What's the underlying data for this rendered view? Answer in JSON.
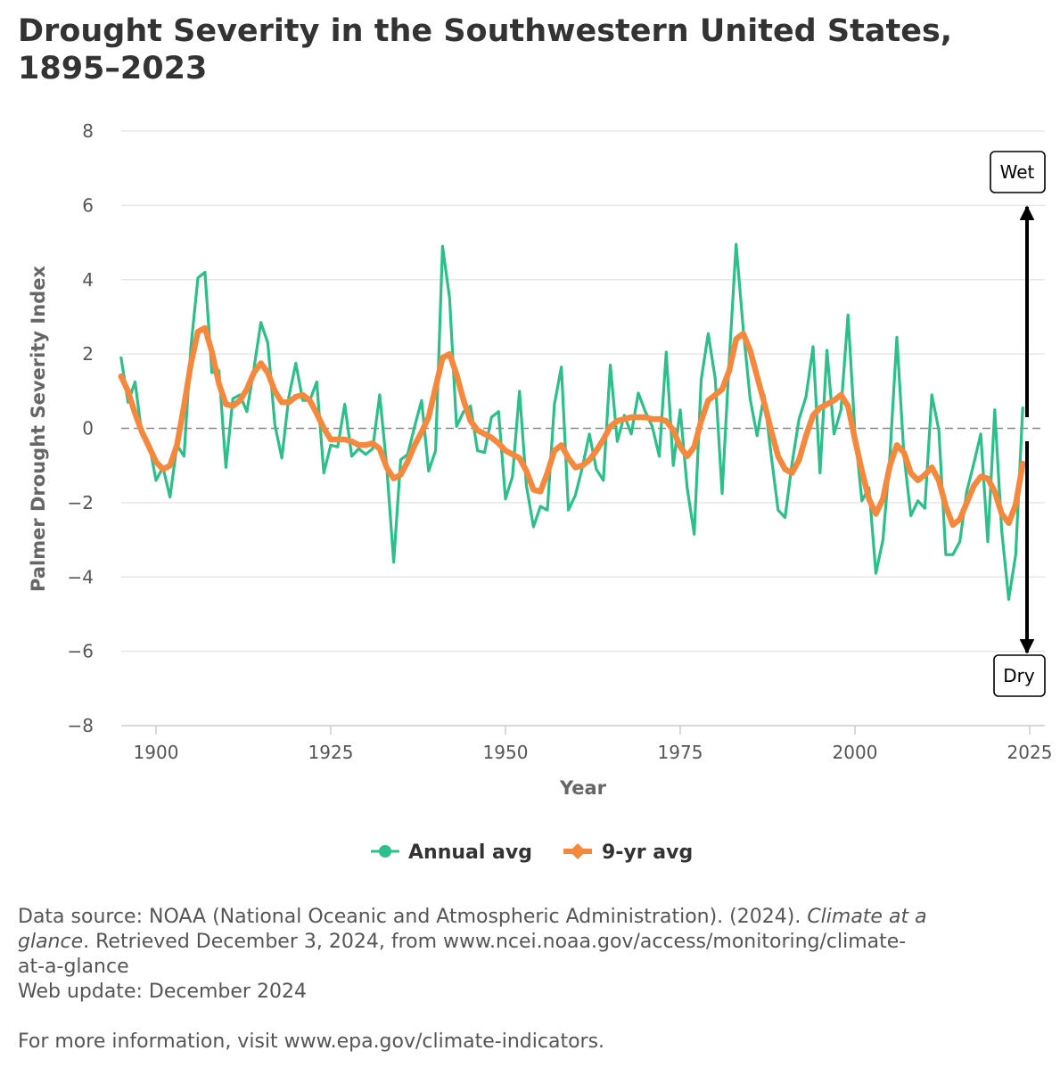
{
  "chart_data": {
    "type": "line",
    "title": "Drought Severity in the Southwestern United States, 1895–2023",
    "xlabel": "Year",
    "ylabel": "Palmer Drought Severity Index",
    "xlim": [
      1895,
      2026
    ],
    "ylim": [
      -8,
      8
    ],
    "xticks": [
      1900,
      1925,
      1950,
      1975,
      2000,
      2025
    ],
    "yticks": [
      8,
      6,
      4,
      2,
      0,
      -2,
      -4,
      -6,
      -8
    ],
    "ytick_labels": [
      "8",
      "6",
      "4",
      "2",
      "0",
      "−2",
      "−4",
      "−6",
      "−8"
    ],
    "grid": true,
    "reference_line": 0,
    "legend_position": "bottom-center",
    "annotations": [
      {
        "text": "Wet",
        "direction": "up"
      },
      {
        "text": "Dry",
        "direction": "down"
      }
    ],
    "series": [
      {
        "name": "Annual avg",
        "color": "#2bbf8a",
        "x_start": 1895,
        "values": [
          1.9,
          0.7,
          1.25,
          -0.2,
          -0.4,
          -1.4,
          -1.05,
          -1.85,
          -0.45,
          -0.75,
          2.2,
          4.05,
          4.2,
          1.5,
          1.55,
          -1.05,
          0.8,
          0.9,
          0.45,
          1.6,
          2.85,
          2.3,
          0.1,
          -0.8,
          0.85,
          1.75,
          0.75,
          0.75,
          1.25,
          -1.2,
          -0.45,
          -0.5,
          0.65,
          -0.75,
          -0.55,
          -0.7,
          -0.55,
          0.9,
          -1.0,
          -3.6,
          -0.85,
          -0.7,
          0.05,
          0.75,
          -1.15,
          -0.6,
          4.9,
          3.5,
          0.05,
          0.45,
          0.6,
          -0.6,
          -0.65,
          0.3,
          0.45,
          -1.9,
          -1.3,
          1.0,
          -1.55,
          -2.65,
          -2.1,
          -2.2,
          0.65,
          1.65,
          -2.2,
          -1.8,
          -1.05,
          -0.15,
          -1.1,
          -1.4,
          1.7,
          -0.35,
          0.35,
          -0.15,
          0.95,
          0.45,
          0.05,
          -0.75,
          2.05,
          -1.0,
          0.5,
          -1.6,
          -2.85,
          1.3,
          2.55,
          1.35,
          -1.75,
          1.8,
          4.95,
          2.7,
          0.8,
          -0.2,
          0.9,
          -0.7,
          -2.2,
          -2.4,
          -0.95,
          0.25,
          0.85,
          2.2,
          -1.2,
          2.1,
          -0.15,
          0.5,
          3.05,
          -0.1,
          -1.95,
          -1.6,
          -3.9,
          -3.0,
          -0.75,
          2.45,
          -0.7,
          -2.35,
          -1.95,
          -2.15,
          0.9,
          -0.05,
          -3.4,
          -3.4,
          -3.05,
          -1.7,
          -0.95,
          -0.15,
          -3.05,
          0.5,
          -2.75,
          -4.6,
          -3.4,
          0.55
        ]
      },
      {
        "name": "9-yr avg",
        "color": "#f5883d",
        "x_start": 1895,
        "values": [
          1.4,
          1.0,
          0.4,
          -0.1,
          -0.5,
          -0.9,
          -1.1,
          -1.0,
          -0.45,
          0.6,
          1.75,
          2.6,
          2.7,
          2.05,
          1.2,
          0.65,
          0.6,
          0.75,
          1.05,
          1.5,
          1.75,
          1.5,
          1.0,
          0.7,
          0.7,
          0.85,
          0.9,
          0.75,
          0.4,
          0.0,
          -0.3,
          -0.3,
          -0.3,
          -0.35,
          -0.45,
          -0.45,
          -0.4,
          -0.55,
          -1.05,
          -1.35,
          -1.25,
          -0.9,
          -0.45,
          -0.1,
          0.3,
          1.1,
          1.9,
          2.0,
          1.45,
          0.75,
          0.2,
          -0.05,
          -0.15,
          -0.25,
          -0.4,
          -0.6,
          -0.7,
          -0.8,
          -1.15,
          -1.65,
          -1.7,
          -1.2,
          -0.6,
          -0.45,
          -0.8,
          -1.05,
          -1.0,
          -0.85,
          -0.6,
          -0.3,
          0.05,
          0.2,
          0.25,
          0.3,
          0.3,
          0.3,
          0.25,
          0.25,
          0.2,
          -0.05,
          -0.5,
          -0.75,
          -0.5,
          0.2,
          0.75,
          0.9,
          1.05,
          1.55,
          2.4,
          2.55,
          2.1,
          1.4,
          0.7,
          -0.05,
          -0.75,
          -1.1,
          -1.2,
          -0.85,
          -0.2,
          0.35,
          0.55,
          0.65,
          0.75,
          0.9,
          0.6,
          -0.3,
          -1.15,
          -1.9,
          -2.3,
          -1.9,
          -1.0,
          -0.45,
          -0.65,
          -1.2,
          -1.4,
          -1.25,
          -1.05,
          -1.4,
          -2.1,
          -2.6,
          -2.45,
          -2.0,
          -1.55,
          -1.3,
          -1.35,
          -1.7,
          -2.3,
          -2.55,
          -2.05,
          -0.95
        ]
      }
    ]
  },
  "footer": {
    "source_line1_a": "Data source: NOAA (National Oceanic and Atmospheric Administration). (2024). ",
    "source_line1_italic_a": "Climate at a",
    "source_line2_italic_b": "glance",
    "source_line2_b": ". Retrieved December 3, 2024, from www.ncei.noaa.gov/access/monitoring/climate-",
    "source_line3": "at-a-glance",
    "web_update": "Web update: December 2024",
    "more_info": "For more information, visit www.epa.gov/climate-indicators."
  }
}
